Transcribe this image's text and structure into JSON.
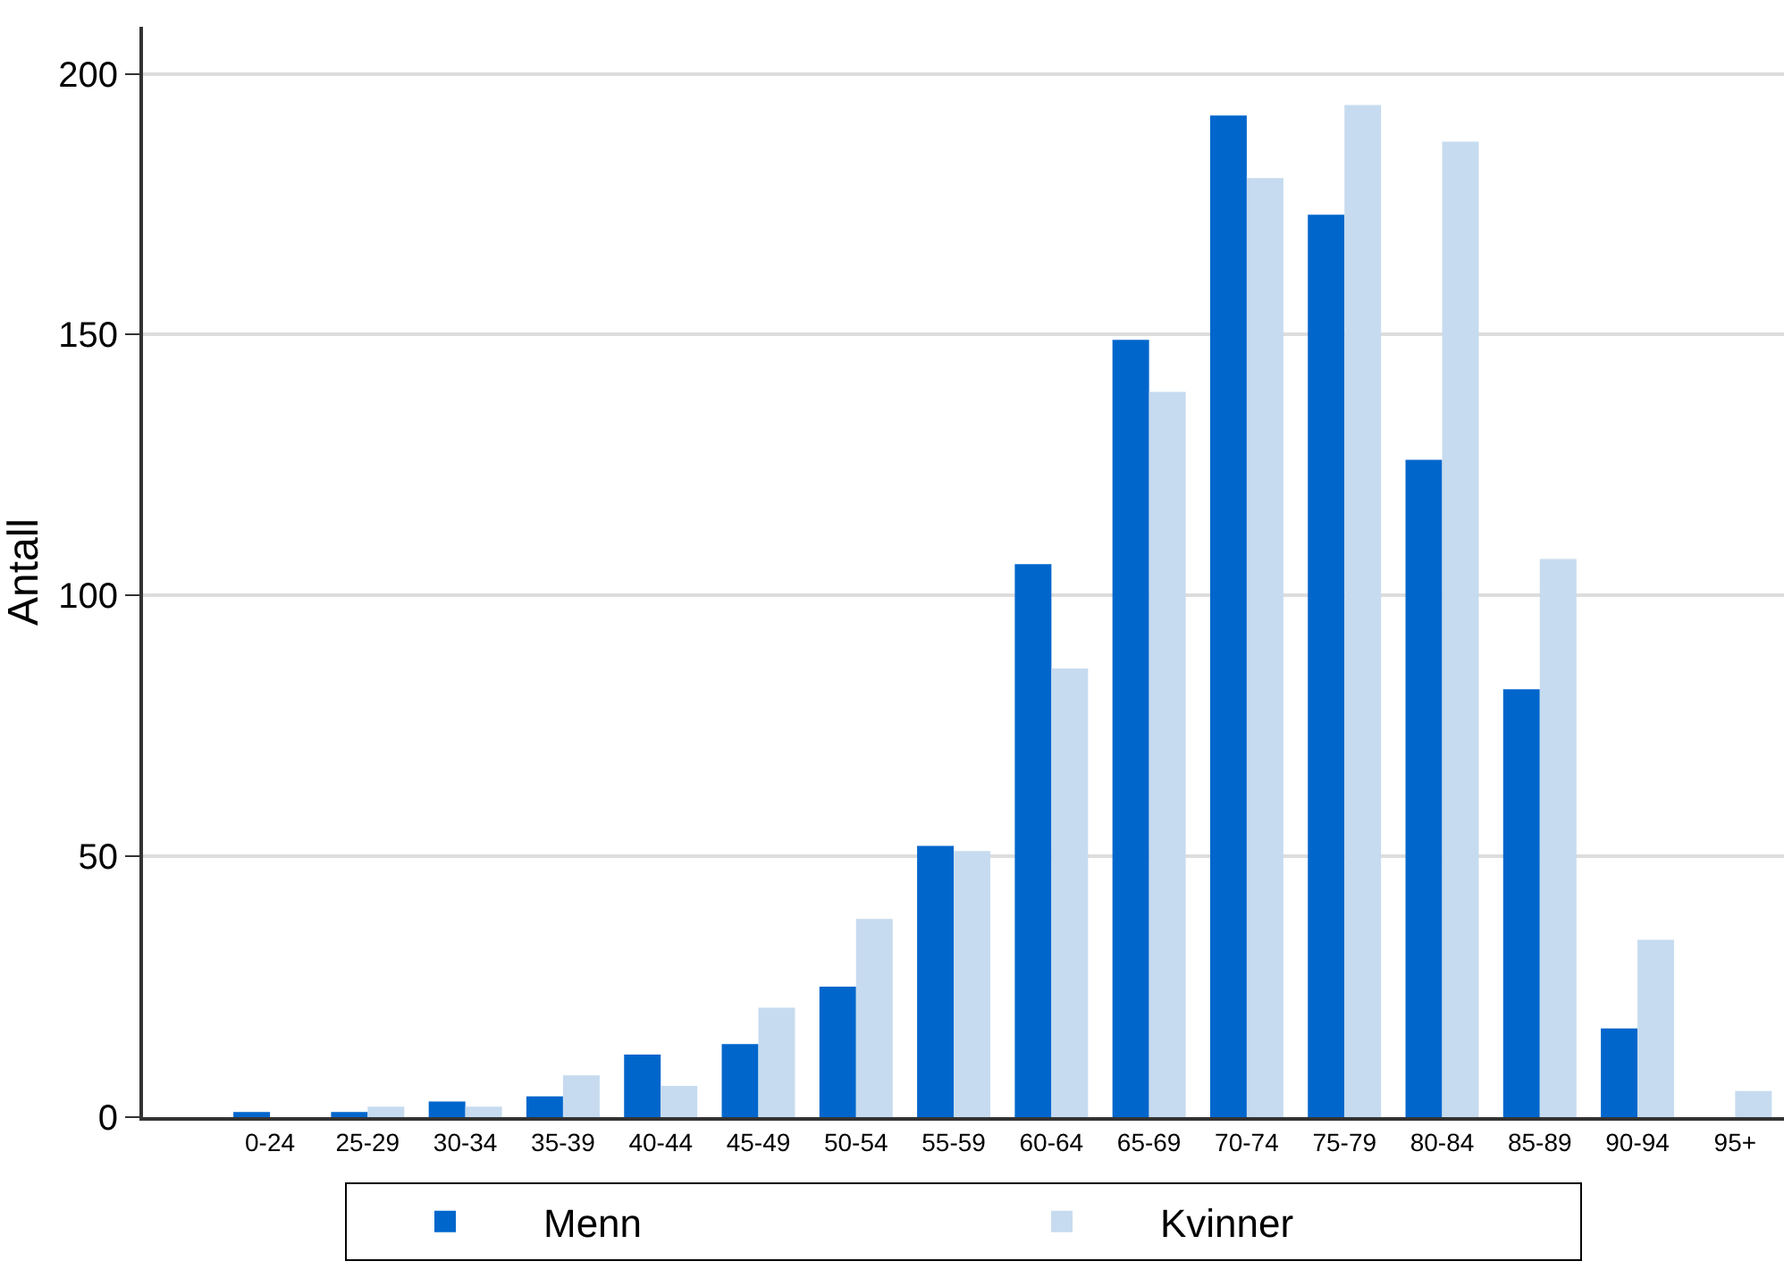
{
  "chart_data": {
    "type": "bar",
    "ylabel": "Antall",
    "categories": [
      "0-24",
      "25-29",
      "30-34",
      "35-39",
      "40-44",
      "45-49",
      "50-54",
      "55-59",
      "60-64",
      "65-69",
      "70-74",
      "75-79",
      "80-84",
      "85-89",
      "90-94",
      "95+"
    ],
    "series": [
      {
        "name": "Menn",
        "color": "#0066cc",
        "values": [
          1,
          1,
          3,
          4,
          12,
          14,
          25,
          52,
          106,
          149,
          192,
          173,
          126,
          82,
          17,
          0
        ]
      },
      {
        "name": "Kvinner",
        "color": "#c6dbef",
        "values": [
          0,
          2,
          2,
          8,
          6,
          21,
          38,
          51,
          86,
          139,
          180,
          194,
          187,
          107,
          34,
          5
        ]
      }
    ],
    "ylim": [
      0,
      209
    ],
    "yticks": [
      0,
      50,
      100,
      150,
      200
    ],
    "grid": "y",
    "legend": "bottom"
  }
}
